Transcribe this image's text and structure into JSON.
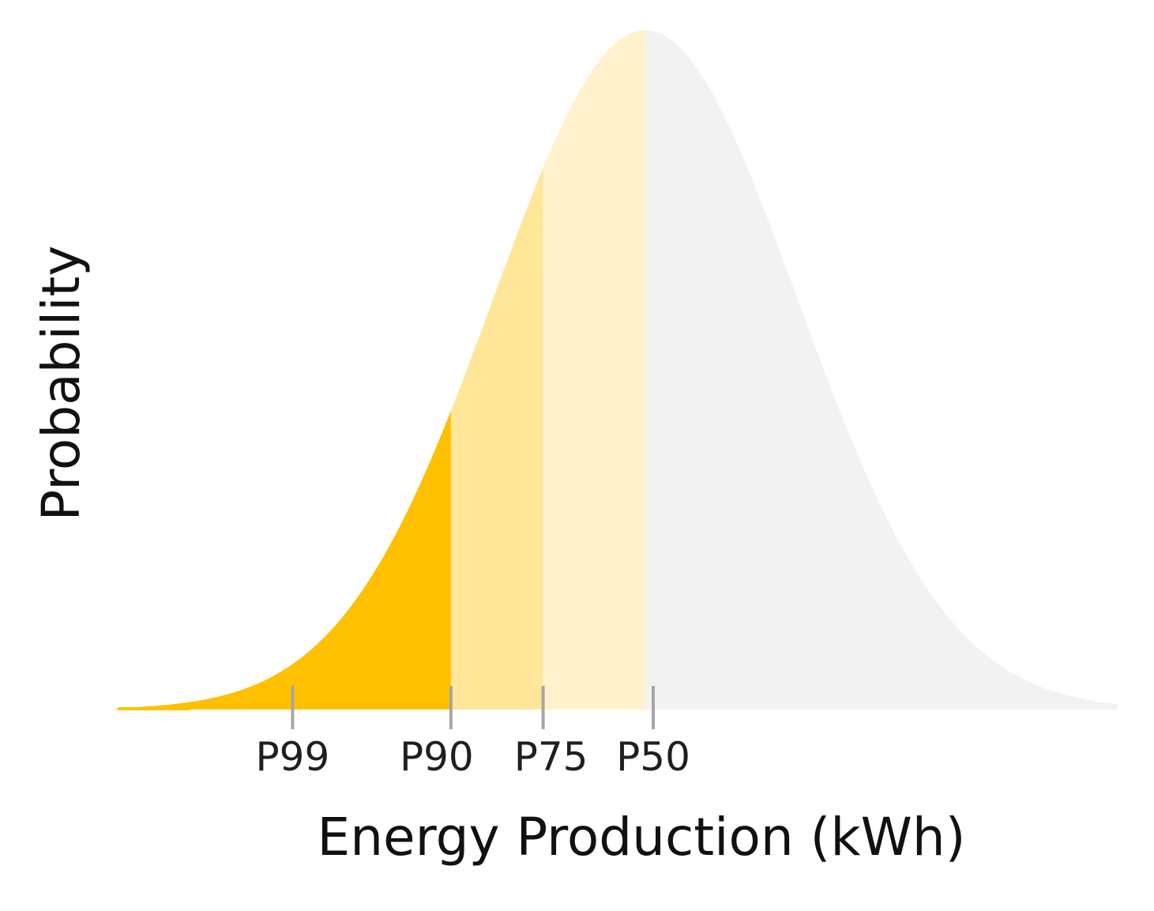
{
  "chart_data": {
    "type": "area",
    "title": "",
    "xlabel": "Energy Production (kWh)",
    "ylabel": "Probability",
    "distribution": "normal",
    "mean": 0,
    "std": 1,
    "xlim": [
      -3.5,
      3.5
    ],
    "markers": [
      {
        "label": "P99",
        "x": -2.326
      },
      {
        "label": "P90",
        "x": -1.282
      },
      {
        "label": "P75",
        "x": -0.674
      },
      {
        "label": "P50",
        "x": 0.0
      }
    ],
    "regions": [
      {
        "from": -3.5,
        "to": -1.282,
        "color": "#FFC000"
      },
      {
        "from": -1.282,
        "to": -0.674,
        "color": "#FFE699"
      },
      {
        "from": -0.674,
        "to": 0.0,
        "color": "#FFF2CC"
      },
      {
        "from": 0.0,
        "to": 3.5,
        "color": "#F2F2F2"
      }
    ],
    "grid": false,
    "legend": "none"
  }
}
